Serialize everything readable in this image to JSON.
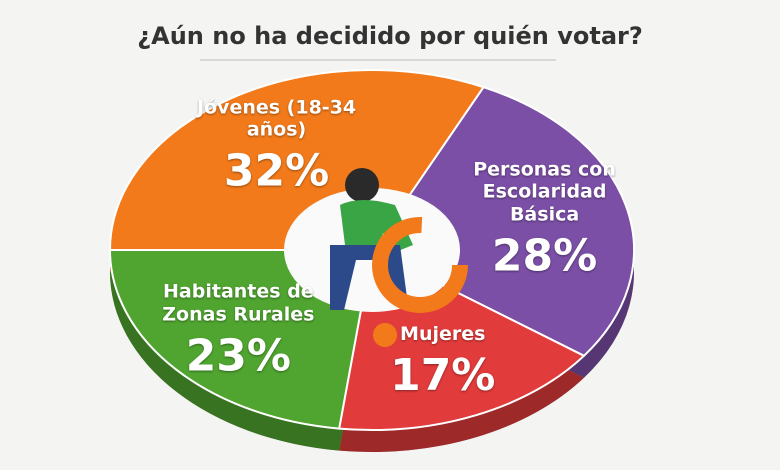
{
  "chart_data": {
    "type": "pie",
    "title": "¿Aún no ha decidido por quién votar?",
    "categories": [
      "Jóvenes (18-34 años)",
      "Personas con Escolaridad Básica",
      "Mujeres",
      "Habitantes de Zonas Rurales"
    ],
    "values": [
      32,
      28,
      17,
      23
    ],
    "value_labels": [
      "32%",
      "28%",
      "17%",
      "23%"
    ],
    "colors": [
      "#f27a1a",
      "#7b4fa6",
      "#e23b3b",
      "#4fa52f"
    ]
  }
}
